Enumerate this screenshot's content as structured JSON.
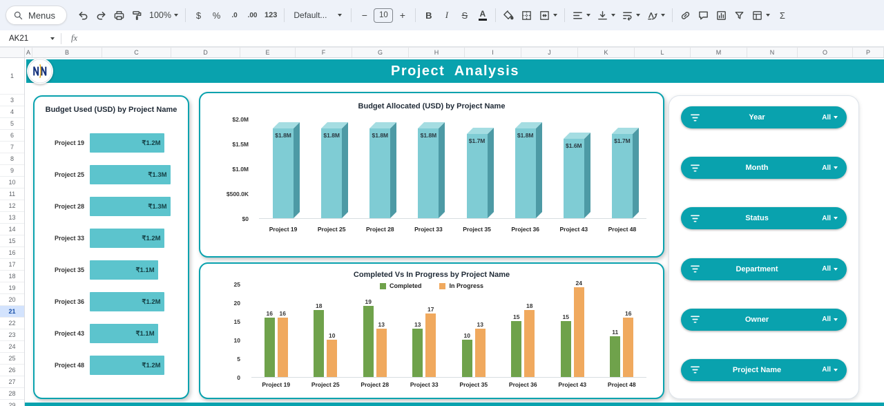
{
  "toolbar": {
    "menus_label": "Menus",
    "zoom_value": "100%",
    "currency_label": "$",
    "percent_label": "%",
    "decrease_decimal_label": ".0",
    "increase_decimal_label": ".00",
    "number_format_label": "123",
    "font_name": "Default...",
    "decrease_font_label": "−",
    "font_size_value": "10",
    "increase_font_label": "+",
    "bold_label": "B",
    "italic_label": "I",
    "strikethrough_label": "S",
    "text_color_label": "A",
    "functions_label": "Σ"
  },
  "formula_bar": {
    "cell_reference": "AK21",
    "fx_label": "fx"
  },
  "sheet": {
    "column_headers": [
      "A",
      "B",
      "C",
      "D",
      "E",
      "F",
      "G",
      "H",
      "I",
      "J",
      "K",
      "L",
      "M",
      "N",
      "O",
      "P"
    ],
    "row_headers": [
      "1",
      "3",
      "4",
      "5",
      "6",
      "7",
      "8",
      "9",
      "10",
      "11",
      "12",
      "13",
      "14",
      "15",
      "16",
      "17",
      "18",
      "19",
      "20",
      "21",
      "22",
      "23",
      "24",
      "25",
      "26",
      "27",
      "28",
      "29"
    ],
    "selected_row": "21"
  },
  "banner": {
    "title": "Project  Analysis"
  },
  "theme": {
    "teal": "#09a2ae"
  },
  "chart_data": [
    {
      "type": "bar",
      "orientation": "horizontal",
      "title": "Budget Used (USD) by Project Name",
      "categories": [
        "Project 19",
        "Project 25",
        "Project 28",
        "Project 33",
        "Project 35",
        "Project 36",
        "Project 43",
        "Project 48"
      ],
      "values": [
        1.2,
        1.3,
        1.3,
        1.2,
        1.1,
        1.2,
        1.1,
        1.2
      ],
      "labels": [
        "₹1.2M",
        "₹1.3M",
        "₹1.3M",
        "₹1.2M",
        "₹1.1M",
        "₹1.2M",
        "₹1.1M",
        "₹1.2M"
      ],
      "xlim": [
        0,
        1.45
      ],
      "bar_color": "#5cc4cd",
      "value_color": "#143e43"
    },
    {
      "type": "bar",
      "orientation": "vertical",
      "style": "3d",
      "title": "Budget Allocated (USD) by Project Name",
      "categories": [
        "Project 19",
        "Project 25",
        "Project 28",
        "Project 33",
        "Project 35",
        "Project 36",
        "Project 43",
        "Project 48"
      ],
      "values": [
        1.8,
        1.8,
        1.8,
        1.8,
        1.7,
        1.8,
        1.6,
        1.7
      ],
      "labels": [
        "$1.8M",
        "$1.8M",
        "$1.8M",
        "$1.8M",
        "$1.7M",
        "$1.8M",
        "$1.6M",
        "$1.7M"
      ],
      "y_ticks": [
        "$2.0M",
        "$1.5M",
        "$1.0M",
        "$500.0K",
        "$0"
      ],
      "ylim": [
        0,
        2
      ],
      "colors": {
        "front": "#7fccd4",
        "side": "#4d9aa5",
        "top": "#a5dde2"
      }
    },
    {
      "type": "bar",
      "orientation": "vertical",
      "grouping": "grouped",
      "title": "Completed Vs In Progress by Project Name",
      "categories": [
        "Project 19",
        "Project 25",
        "Project 28",
        "Project 33",
        "Project 35",
        "Project 36",
        "Project 43",
        "Project 48"
      ],
      "series": [
        {
          "name": "Completed",
          "color": "#6fa24b",
          "values": [
            16,
            18,
            19,
            13,
            10,
            15,
            15,
            11
          ]
        },
        {
          "name": "In Progress",
          "color": "#f0a95e",
          "values": [
            16,
            10,
            13,
            17,
            13,
            18,
            24,
            16
          ]
        }
      ],
      "y_ticks": [
        "25",
        "20",
        "15",
        "10",
        "5",
        "0"
      ],
      "ylim": [
        0,
        25
      ],
      "legend_position": "top"
    }
  ],
  "filters": {
    "items": [
      {
        "label": "Year",
        "value": "All"
      },
      {
        "label": "Month",
        "value": "All"
      },
      {
        "label": "Status",
        "value": "All"
      },
      {
        "label": "Department",
        "value": "All"
      },
      {
        "label": "Owner",
        "value": "All"
      },
      {
        "label": "Project Name",
        "value": "All"
      }
    ]
  }
}
